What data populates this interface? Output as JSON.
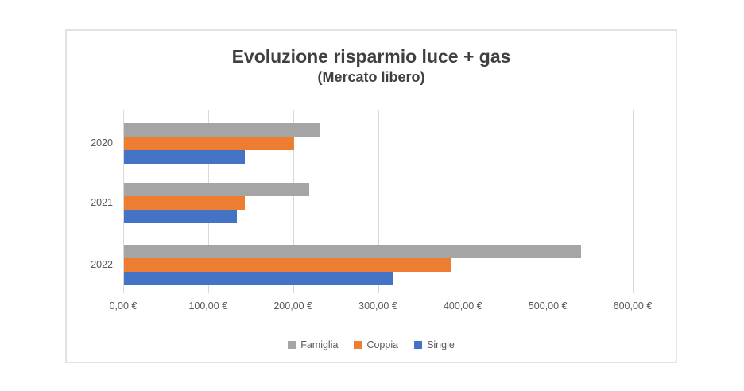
{
  "chart_data": {
    "type": "bar",
    "orientation": "horizontal",
    "title": "Evoluzione risparmio luce + gas",
    "subtitle": "(Mercato libero)",
    "categories": [
      "2020",
      "2021",
      "2022"
    ],
    "series": [
      {
        "name": "Famiglia",
        "color": "#A5A5A5",
        "values": [
          230,
          218,
          538
        ]
      },
      {
        "name": "Coppia",
        "color": "#ED7D31",
        "values": [
          200,
          142,
          385
        ]
      },
      {
        "name": "Single",
        "color": "#4472C4",
        "values": [
          142,
          133,
          316
        ]
      }
    ],
    "xlim": [
      0,
      600
    ],
    "x_tick_interval": 100,
    "x_tick_labels": [
      "0,00 €",
      "100,00 €",
      "200,00 €",
      "300,00 €",
      "400,00 €",
      "500,00 €",
      "600,00 €"
    ],
    "grid": true,
    "legend_position": "bottom",
    "bar_order_top_to_bottom": [
      "Famiglia",
      "Coppia",
      "Single"
    ],
    "category_order_top_to_bottom": [
      "2020",
      "2021",
      "2022"
    ]
  },
  "style_colors": {
    "title_text": "#404040",
    "axis_text": "#595959",
    "gridline": "#D9D9D9",
    "chart_border": "#E2E2E2",
    "background": "#FFFFFF"
  }
}
